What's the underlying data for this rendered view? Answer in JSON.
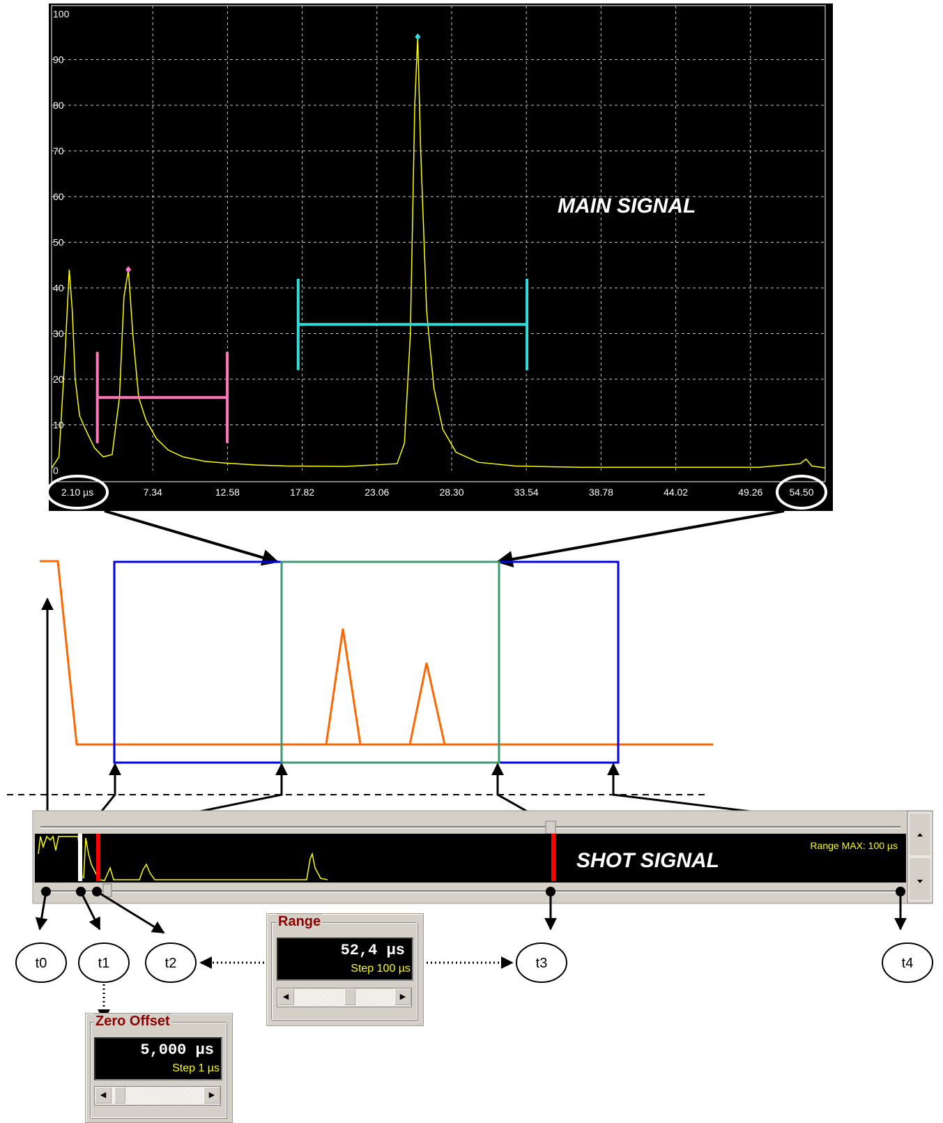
{
  "main_plot": {
    "label": "MAIN SIGNAL",
    "y_ticks": [
      "100",
      "90",
      "80",
      "70",
      "60",
      "50",
      "40",
      "30",
      "20",
      "10",
      "0"
    ],
    "x_ticks": [
      "2.10 µs",
      "7.34",
      "12.58",
      "17.82",
      "23.06",
      "28.30",
      "33.54",
      "38.78",
      "44.02",
      "49.26",
      "54.50"
    ]
  },
  "shot": {
    "label": "SHOT SIGNAL",
    "range_max": "Range MAX: 100 µs"
  },
  "time_markers": [
    "t0",
    "t1",
    "t2",
    "t3",
    "t4"
  ],
  "range_control": {
    "title": "Range",
    "value": "52,4 µs",
    "step": "Step 100 µs"
  },
  "zero_offset_control": {
    "title": "Zero Offset",
    "value": "5,000 µs",
    "step": "Step 1 µs"
  },
  "chart_data": {
    "type": "line",
    "xlim": [
      2.1,
      54.5
    ],
    "ylim": [
      0,
      100
    ],
    "grid": true,
    "series": [
      {
        "x": [
          2.1,
          2.6,
          3.0,
          3.3,
          3.5,
          3.7,
          4.0,
          4.4,
          5.0,
          5.6,
          6.2,
          6.7,
          7.0,
          7.3,
          7.6,
          8.0,
          8.5,
          9.2,
          10.0,
          11.0,
          12.5,
          14.0,
          16.0,
          18.0,
          22.0,
          25.5,
          26.0,
          26.4,
          26.7,
          26.9,
          27.1,
          27.5,
          28.0,
          28.6,
          29.5,
          31.0,
          33.5,
          38.0,
          44.0,
          50.0,
          52.8,
          53.2,
          53.6,
          54.5
        ],
        "values": [
          0.5,
          3,
          25,
          44,
          35,
          20,
          12,
          9,
          5,
          3,
          3.5,
          16,
          38,
          44,
          30,
          16,
          11,
          7,
          4.5,
          3,
          2,
          1.6,
          1.2,
          1,
          0.9,
          1.5,
          6,
          30,
          80,
          95,
          70,
          35,
          18,
          9,
          4,
          1.8,
          1,
          0.7,
          0.7,
          0.7,
          1.5,
          2.5,
          1,
          0.6
        ]
      }
    ],
    "markers": [
      {
        "x": 7.3,
        "y": 44,
        "color": "#ff77cc"
      },
      {
        "x": 26.9,
        "y": 95,
        "color": "#33dddd"
      }
    ],
    "gates": [
      {
        "x_start": 5.2,
        "x_end": 14.0,
        "level": 16,
        "height_top": 26,
        "height_bottom": 6,
        "color": "#ff77bb"
      },
      {
        "x_start": 18.8,
        "x_end": 34.3,
        "level": 32,
        "height_top": 42,
        "height_bottom": 22,
        "color": "#33dddd"
      }
    ]
  }
}
